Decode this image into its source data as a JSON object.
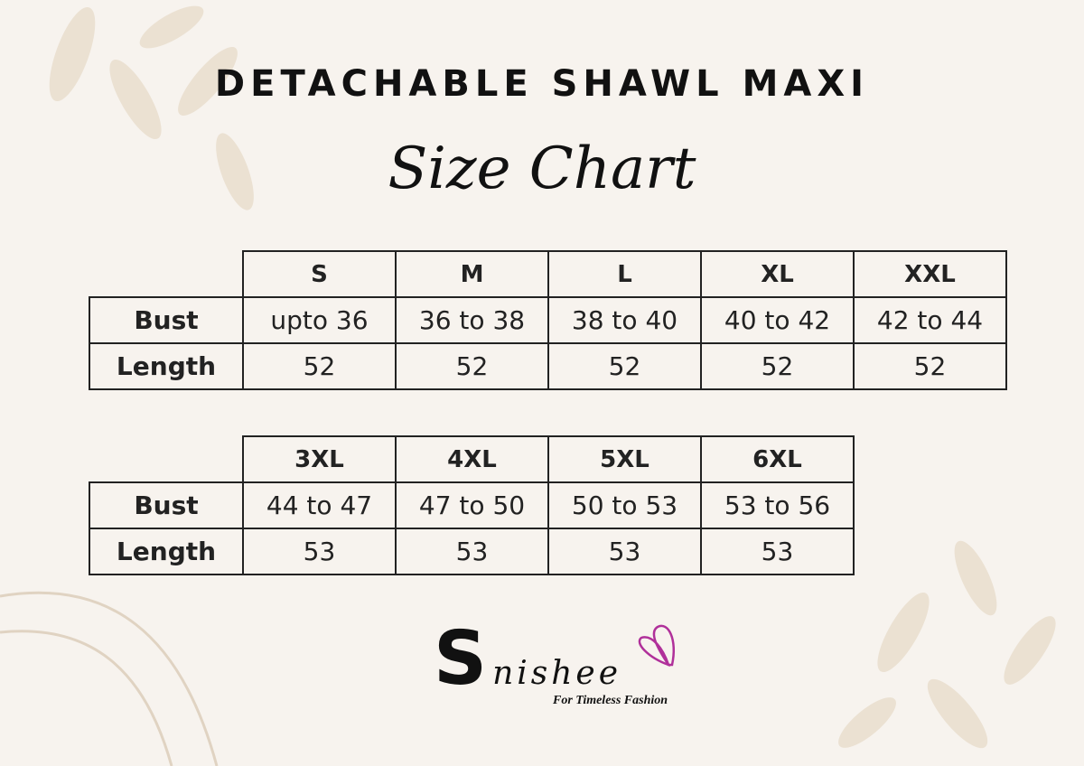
{
  "title": "DETACHABLE SHAWL MAXI",
  "subtitle": "Size Chart",
  "table1": {
    "headers": [
      "S",
      "M",
      "L",
      "XL",
      "XXL"
    ],
    "rows": [
      {
        "label": "Bust",
        "values": [
          "upto 36",
          "36 to 38",
          "38 to 40",
          "40 to 42",
          "42 to 44"
        ]
      },
      {
        "label": "Length",
        "values": [
          "52",
          "52",
          "52",
          "52",
          "52"
        ]
      }
    ]
  },
  "table2": {
    "headers": [
      "3XL",
      "4XL",
      "5XL",
      "6XL"
    ],
    "rows": [
      {
        "label": "Bust",
        "values": [
          "44 to 47",
          "47 to 50",
          "50 to 53",
          "53 to 56"
        ]
      },
      {
        "label": "Length",
        "values": [
          "53",
          "53",
          "53",
          "53"
        ]
      }
    ]
  },
  "logo": {
    "brand": "Snishee",
    "tagline": "For Timeless Fashion",
    "accent": "#b0309a"
  }
}
